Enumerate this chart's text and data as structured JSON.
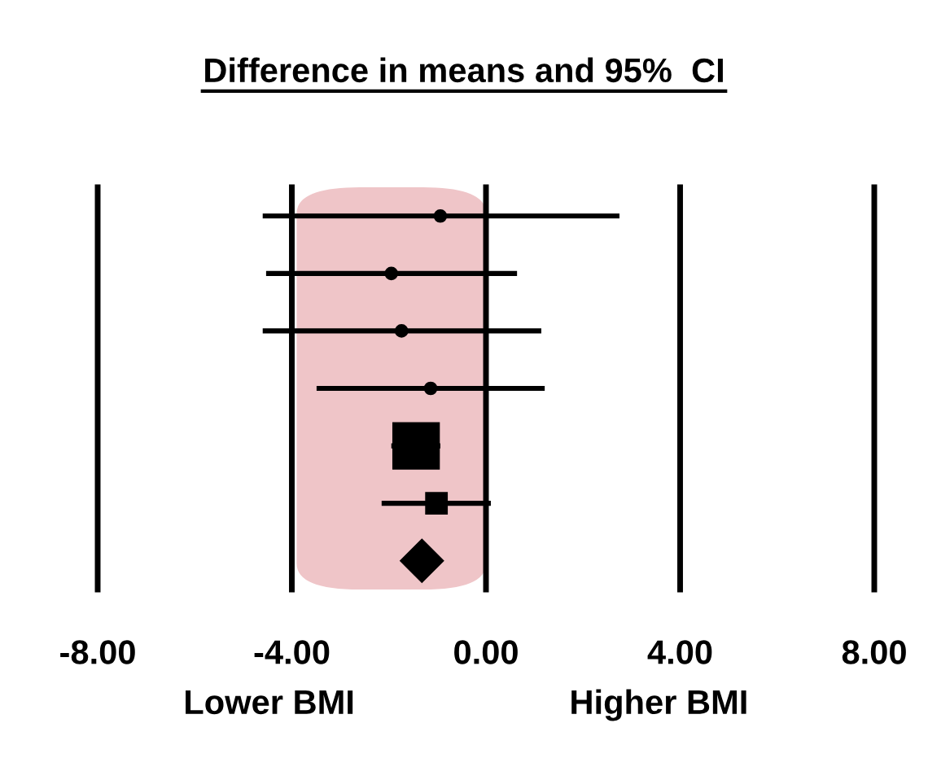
{
  "chart_data": {
    "type": "scatter",
    "orientation": "horizontal",
    "title": "Difference in means and 95%  CI",
    "categories": [
      null,
      null,
      null,
      null,
      null,
      null,
      null
    ],
    "series": [
      {
        "marker": "circle",
        "color": "#000000",
        "values": [
          -0.94,
          -1.95,
          -1.74,
          -1.14,
          null,
          null,
          null
        ],
        "errors": [
          [
            -4.6,
            2.75
          ],
          [
            -4.53,
            0.64
          ],
          [
            -4.6,
            1.14
          ],
          [
            -3.49,
            1.21
          ],
          null,
          null,
          null
        ]
      },
      {
        "marker": "square",
        "color": "#000000",
        "values": [
          null,
          null,
          null,
          null,
          -1.44,
          -1.02,
          null
        ],
        "errors": [
          null,
          null,
          null,
          null,
          [
            -1.95,
            -0.94
          ],
          [
            -2.15,
            0.1
          ],
          null
        ]
      },
      {
        "marker": "diamond",
        "color": "#000000",
        "values": [
          null,
          null,
          null,
          null,
          null,
          null,
          -1.32
        ]
      }
    ],
    "xlim": [
      -8,
      8
    ],
    "xticks": [
      {
        "value": -8,
        "label": "-8.00"
      },
      {
        "value": -4,
        "label": "-4.00"
      },
      {
        "value": 0,
        "label": "0.00"
      },
      {
        "value": 4,
        "label": "4.00"
      },
      {
        "value": 8,
        "label": "8.00"
      }
    ],
    "grid": "x",
    "bands": [
      {
        "axis": "x",
        "from": -3.9,
        "to": 0,
        "color": "#efc5c8"
      }
    ],
    "annotations": [
      "Lower BMI",
      "Higher BMI"
    ]
  }
}
